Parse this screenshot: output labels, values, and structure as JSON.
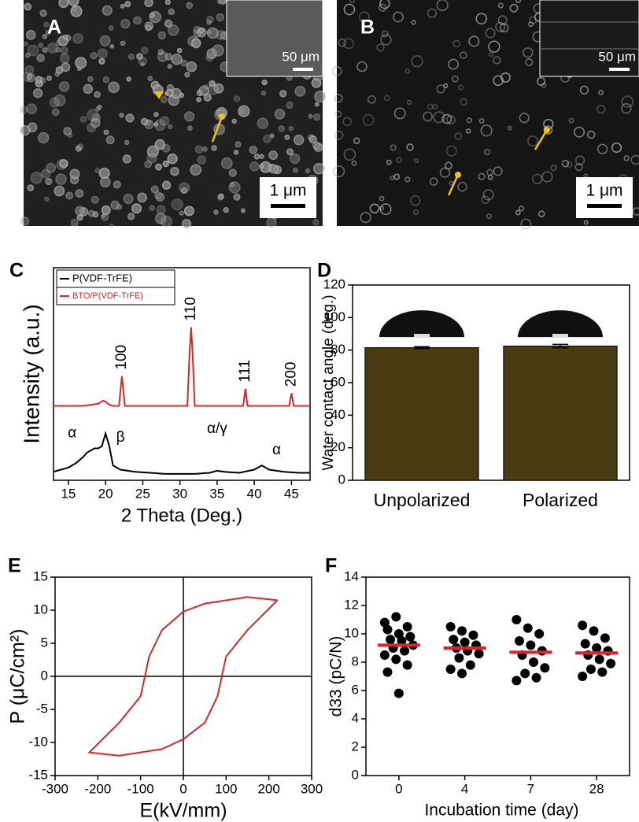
{
  "images": [
    {
      "letter": "A",
      "scale_bar": "1 μm",
      "inset_scale_bar": "50 μm"
    },
    {
      "letter": "B",
      "scale_bar": "1 μm",
      "inset_scale_bar": "50 μm"
    }
  ],
  "chart_data": [
    {
      "type": "line",
      "letter": "C",
      "x_label": "2 Theta (Deg.)",
      "y_label": "Intensity (a.u.)",
      "xlim": [
        13,
        47.5
      ],
      "xticks": [
        15,
        20,
        25,
        30,
        35,
        40,
        45
      ],
      "ylim": [
        0,
        100
      ],
      "legend": "top-left",
      "annotations": [
        "100",
        "110",
        "111",
        "200",
        "α",
        "β",
        "α/γ",
        "α"
      ],
      "series": [
        {
          "name": "P(VDF-TrFE)",
          "color": "#000000",
          "x": [
            13,
            14,
            15,
            16,
            17,
            17.5,
            18,
            18.5,
            19,
            19.5,
            20,
            20.5,
            21,
            22,
            24,
            26,
            28,
            30,
            32,
            34,
            35,
            36,
            38,
            40,
            41,
            42,
            44,
            46,
            47.5
          ],
          "values": [
            4,
            5,
            6,
            8,
            11,
            13,
            14,
            15,
            15,
            16,
            22,
            16,
            7,
            5,
            4,
            3.5,
            3,
            3,
            3,
            3.5,
            4.5,
            4,
            3.5,
            5,
            7,
            5,
            4,
            3.5,
            3.5
          ]
        },
        {
          "name": "BTO/P(VDF-TrFE)",
          "color": "#d62828",
          "x": [
            13,
            15,
            17,
            19,
            19.7,
            20,
            20.5,
            21,
            21.8,
            22.2,
            22.6,
            24,
            28,
            31,
            31.3,
            31.5,
            31.7,
            32,
            35,
            38.5,
            38.8,
            39.1,
            42,
            44.7,
            45,
            45.3,
            47.5
          ],
          "values": [
            35,
            35,
            35,
            36,
            37.5,
            37,
            35.5,
            35,
            35,
            49,
            35,
            35,
            35,
            35,
            60,
            72,
            60,
            35,
            35,
            35,
            43,
            35,
            35,
            35,
            41,
            35,
            35
          ]
        }
      ]
    },
    {
      "type": "bar",
      "letter": "D",
      "y_label": "Water contact angle (deg.)",
      "categories": [
        "Unpolarized",
        "Polarized"
      ],
      "values": [
        81.5,
        82.5
      ],
      "errors": [
        0.6,
        1.0
      ],
      "color": "#4a3c12",
      "ylim": [
        0,
        120
      ],
      "yticks": [
        0,
        20,
        40,
        60,
        80,
        100,
        120
      ]
    },
    {
      "type": "loop",
      "letter": "E",
      "x_label": "E(kV/mm)",
      "y_label": "P (μC/cm²)",
      "xlim": [
        -300,
        300
      ],
      "xticks": [
        -300,
        -200,
        -100,
        0,
        100,
        200,
        300
      ],
      "ylim": [
        -15,
        15
      ],
      "yticks": [
        -15,
        -10,
        -5,
        0,
        5,
        10,
        15
      ],
      "color": "#d62828",
      "x": [
        220,
        150,
        50,
        0,
        -50,
        -80,
        -90,
        -100,
        -150,
        -220,
        -150,
        -50,
        0,
        50,
        80,
        90,
        100,
        150,
        220
      ],
      "values": [
        11.5,
        12,
        11,
        9.8,
        7,
        3,
        0,
        -3,
        -7,
        -11.5,
        -12,
        -11,
        -9.5,
        -7,
        -3,
        0,
        3,
        7,
        11.5
      ]
    },
    {
      "type": "dot",
      "letter": "F",
      "x_label": "Incubation time (day)",
      "y_label": "d33 (pC/N)",
      "categories": [
        "0",
        "4",
        "7",
        "28"
      ],
      "ylim": [
        0,
        14
      ],
      "yticks": [
        0,
        2,
        4,
        6,
        8,
        10,
        12,
        14
      ],
      "color": "#000000",
      "mean_color": "#e0202a",
      "points": [
        [
          10.8,
          11.2,
          10.5,
          10.3,
          10,
          9.8,
          9.6,
          9.5,
          9.2,
          9,
          8.8,
          8.5,
          8.2,
          7.8,
          7.3,
          5.8
        ],
        [
          10.5,
          10.2,
          9.9,
          9.6,
          9.4,
          9.2,
          9,
          8.8,
          8.6,
          8.3,
          7.8,
          7.5,
          7.2
        ],
        [
          11,
          10.4,
          10,
          9.5,
          9.2,
          8.8,
          8.5,
          8,
          7.6,
          7.2,
          6.9,
          6.7
        ],
        [
          10.6,
          10.2,
          9.7,
          9.3,
          9,
          8.8,
          8.5,
          8.2,
          7.9,
          7.5,
          7.3,
          7
        ]
      ],
      "means": [
        9.2,
        9.0,
        8.7,
        8.65
      ]
    }
  ]
}
